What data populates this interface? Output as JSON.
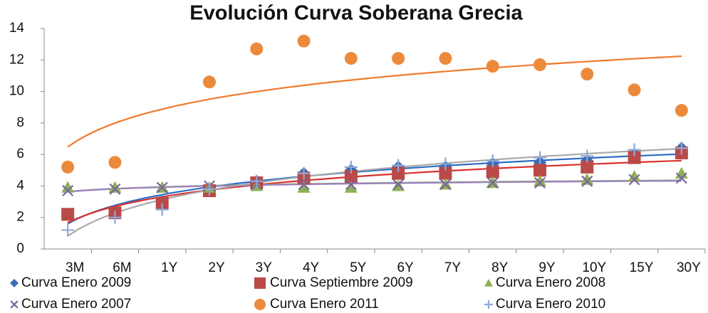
{
  "chart_data": {
    "type": "scatter-trend",
    "title": "Evolución Curva Soberana Grecia",
    "categories": [
      "3M",
      "6M",
      "1Y",
      "2Y",
      "3Y",
      "4Y",
      "5Y",
      "6Y",
      "7Y",
      "8Y",
      "9Y",
      "10Y",
      "15Y",
      "30Y"
    ],
    "ylim": [
      0,
      14
    ],
    "yticks": [
      0,
      2,
      4,
      6,
      8,
      10,
      12,
      14
    ],
    "trendline": "log",
    "series": [
      {
        "name": "Curva Enero 2009",
        "color": "#3a6db5",
        "marker": "diamond",
        "trendline_color": "#2b6cc4",
        "values": [
          2.2,
          2.3,
          3.0,
          3.8,
          4.3,
          4.8,
          5.0,
          5.2,
          5.2,
          5.4,
          5.5,
          5.6,
          6.0,
          6.4
        ]
      },
      {
        "name": "Curva Septiembre 2009",
        "color": "#b94a48",
        "marker": "square",
        "trendline_color": "#d9302c",
        "values": [
          2.2,
          2.3,
          2.9,
          3.7,
          4.2,
          4.5,
          4.6,
          4.8,
          4.8,
          4.9,
          5.0,
          5.2,
          5.8,
          6.1
        ]
      },
      {
        "name": "Curva Enero 2008",
        "color": "#8db255",
        "marker": "triangle",
        "trendline_color": "#8db255",
        "values": [
          3.9,
          3.9,
          3.9,
          3.9,
          4.0,
          3.9,
          3.9,
          4.0,
          4.1,
          4.2,
          4.3,
          4.4,
          4.6,
          4.8
        ]
      },
      {
        "name": "Curva Enero 2007",
        "color": "#7b64a0",
        "marker": "x",
        "trendline_color": "#9b7fc4",
        "values": [
          3.7,
          3.8,
          3.9,
          4.0,
          4.1,
          4.1,
          4.1,
          4.1,
          4.1,
          4.2,
          4.2,
          4.3,
          4.4,
          4.5
        ]
      },
      {
        "name": "Curva Enero 2011",
        "color": "#ec8a3c",
        "marker": "circle",
        "trendline_color": "#f07a2a",
        "values": [
          5.2,
          5.5,
          null,
          10.6,
          12.7,
          13.2,
          12.1,
          12.1,
          12.1,
          11.6,
          11.7,
          11.1,
          10.1,
          8.8
        ]
      },
      {
        "name": "Curva Enero 2010",
        "color": "#8ea8d8",
        "marker": "plus",
        "trendline_color": "#aaaaaa",
        "values": [
          1.2,
          2.0,
          2.5,
          3.8,
          4.3,
          4.8,
          5.2,
          5.3,
          5.4,
          5.6,
          5.8,
          5.9,
          6.3,
          6.4
        ]
      }
    ]
  }
}
